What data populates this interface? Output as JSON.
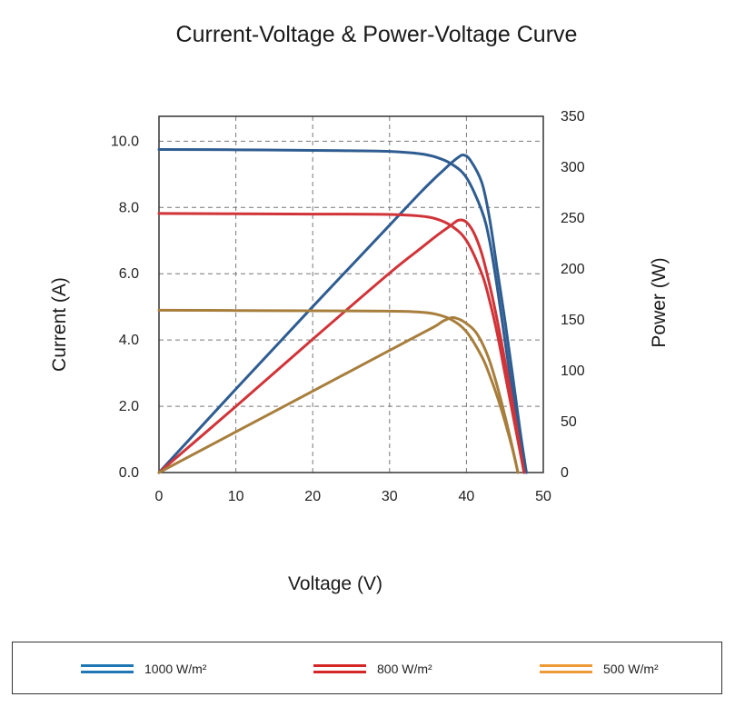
{
  "chart_data": {
    "type": "line",
    "title": "Current-Voltage & Power-Voltage Curve",
    "xlabel": "Voltage (V)",
    "ylabel": "Current (A)",
    "y2label": "Power (W)",
    "xlim": [
      0,
      50
    ],
    "ylim": [
      0,
      10.75
    ],
    "y2lim": [
      0,
      350
    ],
    "xticks": [
      "0",
      "10",
      "20",
      "30",
      "40",
      "50"
    ],
    "yticks": [
      "0.0",
      "2.0",
      "4.0",
      "6.0",
      "8.0",
      "10.0"
    ],
    "y2ticks": [
      "0",
      "50",
      "100",
      "150",
      "200",
      "250",
      "300",
      "350"
    ],
    "grid": true,
    "legend_position": "bottom",
    "series": [
      {
        "name": "1000 W/m²",
        "color": "#2f5d91",
        "legend_color": "#1f77b4",
        "iv": [
          [
            0,
            9.75
          ],
          [
            10,
            9.74
          ],
          [
            20,
            9.72
          ],
          [
            25,
            9.71
          ],
          [
            30,
            9.69
          ],
          [
            34,
            9.62
          ],
          [
            36,
            9.52
          ],
          [
            38,
            9.32
          ],
          [
            40,
            8.9
          ],
          [
            42,
            7.9
          ],
          [
            43,
            7.0
          ],
          [
            44,
            5.6
          ],
          [
            45,
            4.0
          ],
          [
            46,
            2.4
          ],
          [
            47,
            0.9
          ],
          [
            47.8,
            0
          ]
        ],
        "pv": [
          [
            0,
            0
          ],
          [
            10,
            82
          ],
          [
            20,
            163
          ],
          [
            30,
            243
          ],
          [
            34,
            275
          ],
          [
            36,
            290
          ],
          [
            37,
            297
          ],
          [
            38,
            304
          ],
          [
            39,
            310
          ],
          [
            39.6,
            312
          ],
          [
            40.5,
            307
          ],
          [
            42,
            285
          ],
          [
            43,
            250
          ],
          [
            44,
            200
          ],
          [
            45,
            150
          ],
          [
            46,
            96
          ],
          [
            47,
            40
          ],
          [
            47.8,
            0
          ]
        ]
      },
      {
        "name": "800 W/m²",
        "color": "#d13438",
        "legend_color": "#d62728",
        "iv": [
          [
            0,
            7.82
          ],
          [
            10,
            7.81
          ],
          [
            20,
            7.8
          ],
          [
            30,
            7.79
          ],
          [
            34,
            7.74
          ],
          [
            36,
            7.66
          ],
          [
            38,
            7.45
          ],
          [
            40,
            7.0
          ],
          [
            42,
            6.0
          ],
          [
            43,
            5.2
          ],
          [
            44,
            4.2
          ],
          [
            45,
            3.0
          ],
          [
            46,
            1.8
          ],
          [
            47,
            0.6
          ],
          [
            47.5,
            0
          ]
        ],
        "pv": [
          [
            0,
            0
          ],
          [
            10,
            65
          ],
          [
            20,
            131
          ],
          [
            30,
            196
          ],
          [
            34,
            220
          ],
          [
            36,
            232
          ],
          [
            38,
            243
          ],
          [
            39,
            248
          ],
          [
            40,
            246
          ],
          [
            41,
            235
          ],
          [
            42,
            215
          ],
          [
            43,
            185
          ],
          [
            44,
            150
          ],
          [
            45,
            110
          ],
          [
            46,
            68
          ],
          [
            47,
            22
          ],
          [
            47.5,
            0
          ]
        ]
      },
      {
        "name": "500 W/m²",
        "color": "#a87e3c",
        "legend_color": "#ee9a36",
        "iv": [
          [
            0,
            4.9
          ],
          [
            10,
            4.89
          ],
          [
            20,
            4.88
          ],
          [
            30,
            4.87
          ],
          [
            34,
            4.84
          ],
          [
            36,
            4.78
          ],
          [
            38,
            4.62
          ],
          [
            40,
            4.25
          ],
          [
            42,
            3.5
          ],
          [
            43,
            2.95
          ],
          [
            44,
            2.3
          ],
          [
            45,
            1.55
          ],
          [
            46,
            0.7
          ],
          [
            46.7,
            0
          ]
        ],
        "pv": [
          [
            0,
            0
          ],
          [
            10,
            40
          ],
          [
            20,
            80
          ],
          [
            30,
            120
          ],
          [
            34,
            136
          ],
          [
            36,
            144
          ],
          [
            37,
            149
          ],
          [
            38,
            152
          ],
          [
            38.5,
            152
          ],
          [
            39.5,
            149
          ],
          [
            41,
            140
          ],
          [
            42,
            128
          ],
          [
            43,
            110
          ],
          [
            44,
            85
          ],
          [
            45,
            56
          ],
          [
            46,
            24
          ],
          [
            46.7,
            0
          ]
        ]
      }
    ]
  }
}
